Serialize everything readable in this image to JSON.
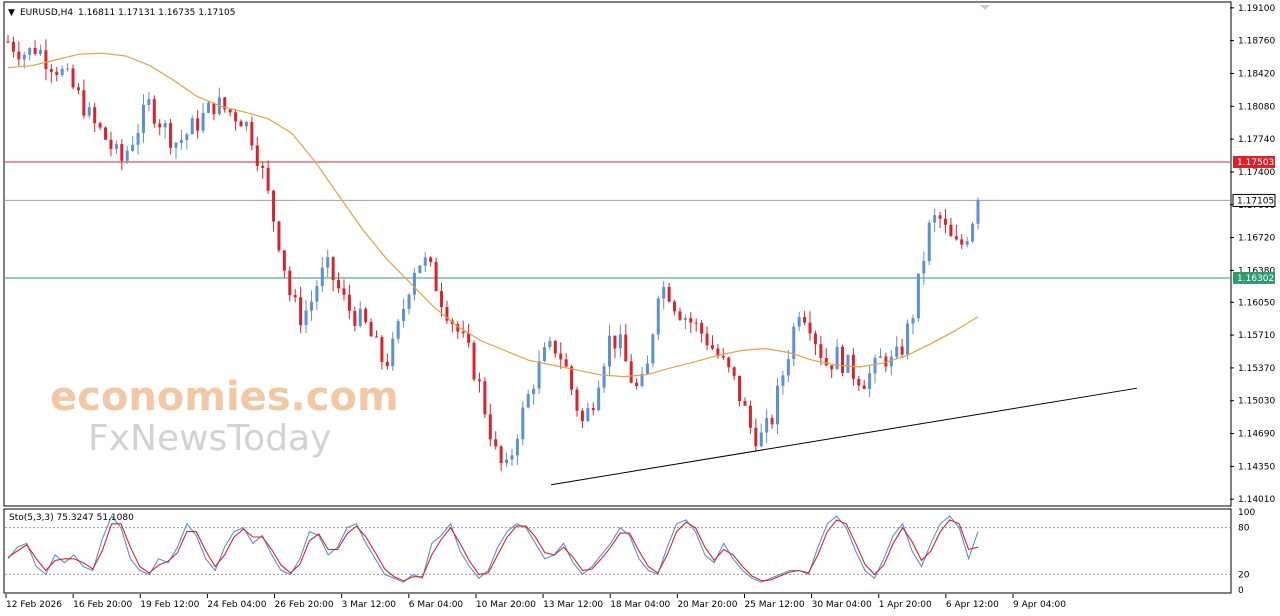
{
  "header": {
    "arrow": "▼",
    "symbol": "EURUSD,H4",
    "ohlc": "1.16811 1.17131 1.16735 1.17105"
  },
  "watermark": {
    "line1": "economies.com",
    "line2": "FxNewsToday"
  },
  "colors": {
    "bull": "#5b8fd6",
    "bear": "#d9232a",
    "ma": "#e8a040",
    "resistance": "#d9232a",
    "support": "#2e9b6f",
    "stoch_main": "#5b8fd6",
    "stoch_signal": "#d9232a"
  },
  "chart_data": [
    {
      "type": "candlestick",
      "symbol": "EURUSD",
      "timeframe": "H4",
      "y_ticks": [
        "1.19100",
        "1.18760",
        "1.18420",
        "1.18080",
        "1.17740",
        "1.17400",
        "1.17060",
        "1.16720",
        "1.16380",
        "1.16050",
        "1.15710",
        "1.15370",
        "1.15030",
        "1.14690",
        "1.14350",
        "1.14010"
      ],
      "ylim": [
        1.1395,
        1.1915
      ],
      "x_ticks": [
        "12 Feb 2026",
        "16 Feb 20:00",
        "19 Feb 12:00",
        "24 Feb 04:00",
        "26 Feb 20:00",
        "3 Mar 12:00",
        "6 Mar 04:00",
        "10 Mar 20:00",
        "13 Mar 12:00",
        "18 Mar 04:00",
        "20 Mar 20:00",
        "25 Mar 12:00",
        "30 Mar 04:00",
        "1 Apr 20:00",
        "6 Apr 12:00",
        "9 Apr 04:00"
      ],
      "price_path": [
        1.1875,
        1.1868,
        1.1862,
        1.187,
        1.1858,
        1.185,
        1.184,
        1.1825,
        1.181,
        1.179,
        1.178,
        1.1765,
        1.175,
        1.177,
        1.179,
        1.181,
        1.1795,
        1.178,
        1.177,
        1.178,
        1.179,
        1.18,
        1.1812,
        1.1805,
        1.18,
        1.1795,
        1.1775,
        1.174,
        1.17,
        1.166,
        1.161,
        1.159,
        1.16,
        1.163,
        1.164,
        1.162,
        1.16,
        1.159,
        1.158,
        1.156,
        1.154,
        1.156,
        1.16,
        1.164,
        1.165,
        1.1635,
        1.161,
        1.159,
        1.157,
        1.155,
        1.152,
        1.148,
        1.144,
        1.143,
        1.147,
        1.15,
        1.153,
        1.155,
        1.156,
        1.1545,
        1.151,
        1.148,
        1.15,
        1.154,
        1.157,
        1.156,
        1.153,
        1.151,
        1.154,
        1.162,
        1.162,
        1.16,
        1.159,
        1.158,
        1.157,
        1.1555,
        1.154,
        1.1525,
        1.15,
        1.147,
        1.1465,
        1.148,
        1.152,
        1.156,
        1.16,
        1.159,
        1.156,
        1.154,
        1.155,
        1.154,
        1.153,
        1.1525,
        1.1535,
        1.155,
        1.154,
        1.156,
        1.159,
        1.164,
        1.169,
        1.169,
        1.167,
        1.166,
        1.168,
        1.171
      ],
      "ma_path": [
        1.1848,
        1.185,
        1.1856,
        1.1862,
        1.1863,
        1.186,
        1.185,
        1.1835,
        1.1818,
        1.1808,
        1.1802,
        1.1795,
        1.178,
        1.175,
        1.1715,
        1.168,
        1.165,
        1.1625,
        1.16,
        1.158,
        1.1565,
        1.1555,
        1.1545,
        1.154,
        1.1535,
        1.153,
        1.1528,
        1.153,
        1.1537,
        1.1543,
        1.155,
        1.1555,
        1.1557,
        1.1553,
        1.1545,
        1.154,
        1.1538,
        1.1542,
        1.155,
        1.1562,
        1.1575,
        1.159
      ],
      "last_price": "1.17105",
      "resistance_level": "1.17503",
      "support_level": "1.16302",
      "trendline": [
        [
          1.1416,
          "13 Mar 12:00"
        ],
        [
          1.1516,
          "9 Apr 04:00"
        ]
      ]
    },
    {
      "type": "line",
      "title": "Sto(5,3,3) 75.3247 51.1080",
      "ylim": [
        0,
        100
      ],
      "y_ticks": [
        "100",
        "80",
        "20",
        "0"
      ],
      "levels": [
        80,
        20
      ],
      "series": [
        {
          "values": [
            40,
            55,
            60,
            30,
            20,
            45,
            35,
            45,
            30,
            25,
            65,
            95,
            80,
            40,
            25,
            20,
            40,
            35,
            55,
            85,
            70,
            40,
            25,
            55,
            75,
            80,
            60,
            70,
            45,
            25,
            20,
            40,
            75,
            70,
            45,
            55,
            80,
            85,
            60,
            40,
            20,
            15,
            10,
            20,
            15,
            60,
            70,
            85,
            50,
            30,
            15,
            25,
            55,
            75,
            85,
            80,
            60,
            40,
            45,
            60,
            35,
            20,
            30,
            45,
            60,
            80,
            70,
            40,
            25,
            20,
            55,
            85,
            90,
            75,
            45,
            35,
            60,
            40,
            25,
            15,
            10,
            15,
            20,
            25,
            25,
            20,
            55,
            85,
            95,
            80,
            50,
            25,
            15,
            40,
            70,
            85,
            50,
            30,
            60,
            85,
            95,
            80,
            40,
            75
          ]
        },
        {
          "values": [
            42,
            50,
            58,
            40,
            25,
            38,
            40,
            40,
            35,
            27,
            50,
            85,
            85,
            55,
            30,
            22,
            32,
            37,
            48,
            75,
            75,
            50,
            30,
            45,
            68,
            78,
            68,
            68,
            52,
            32,
            22,
            33,
            63,
            72,
            52,
            52,
            72,
            82,
            68,
            48,
            27,
            17,
            12,
            17,
            17,
            45,
            65,
            80,
            60,
            37,
            20,
            22,
            45,
            68,
            82,
            82,
            68,
            48,
            45,
            55,
            42,
            25,
            27,
            40,
            55,
            73,
            73,
            50,
            30,
            22,
            45,
            75,
            87,
            80,
            55,
            38,
            52,
            45,
            30,
            18,
            12,
            13,
            18,
            23,
            25,
            22,
            45,
            75,
            90,
            85,
            60,
            33,
            20,
            32,
            60,
            80,
            62,
            38,
            50,
            75,
            90,
            85,
            52,
            55
          ]
        }
      ]
    }
  ]
}
